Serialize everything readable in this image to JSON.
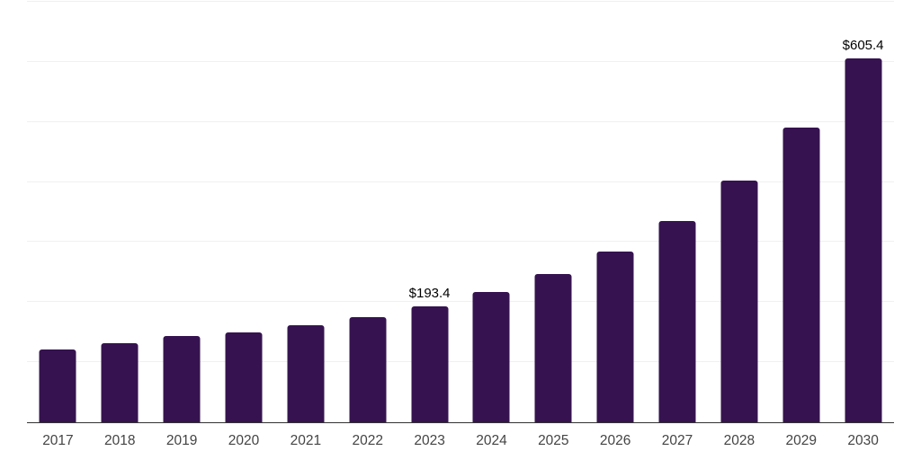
{
  "chart_data": {
    "type": "bar",
    "title": "",
    "xlabel": "",
    "ylabel": "",
    "categories": [
      "2017",
      "2018",
      "2019",
      "2020",
      "2021",
      "2022",
      "2023",
      "2024",
      "2025",
      "2026",
      "2027",
      "2028",
      "2029",
      "2030"
    ],
    "values": [
      121.8,
      132.0,
      143.1,
      150.2,
      161.5,
      174.9,
      193.4,
      217.3,
      247.1,
      284.4,
      335.5,
      401.9,
      490.6,
      605.4
    ],
    "value_labels": [
      "",
      "",
      "",
      "",
      "",
      "",
      "$193.4",
      "",
      "",
      "",
      "",
      "",
      "",
      "$605.4"
    ],
    "ylim": [
      0,
      700
    ],
    "gridline_interval": 100,
    "grid": "horizontal-light",
    "legend": "none",
    "colors": {
      "bar": "#361350",
      "axis_line": "#333333",
      "tick_label": "#444444",
      "value_label": "#000000",
      "gridline": "#f0f0f0",
      "background": "#ffffff"
    }
  }
}
